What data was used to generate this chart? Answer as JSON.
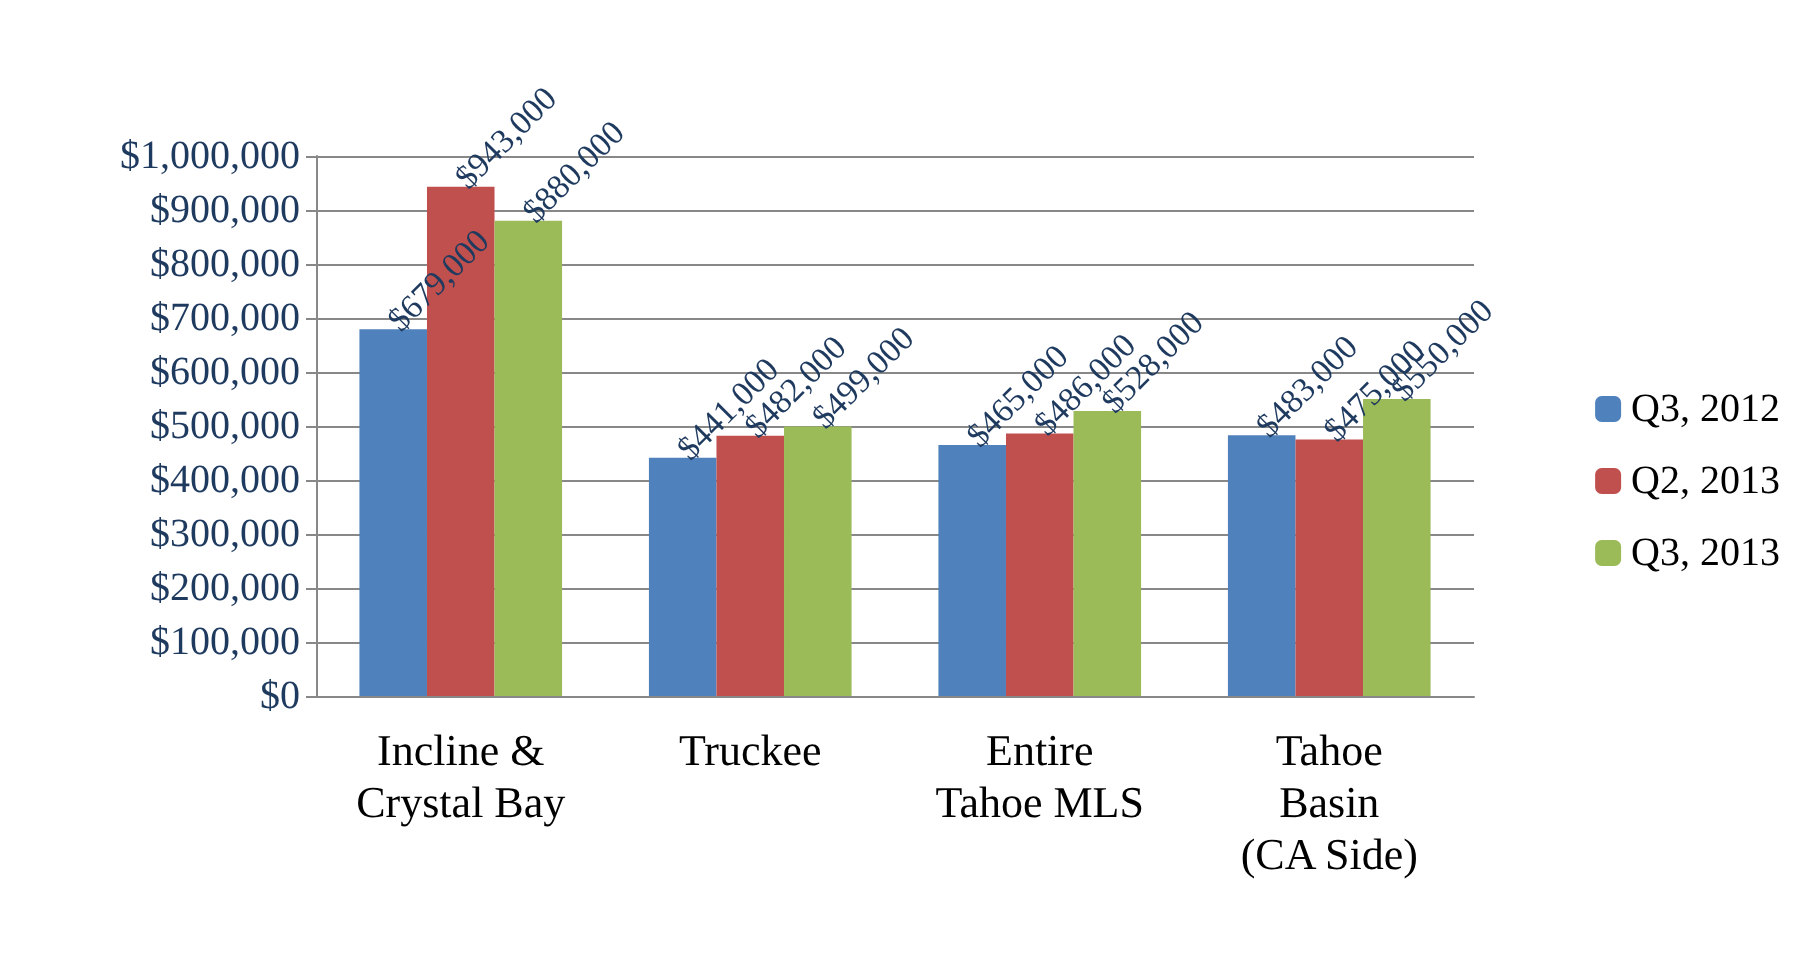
{
  "chart_data": {
    "type": "bar",
    "categories": [
      "Incline &\nCrystal Bay",
      "Truckee",
      "Entire\nTahoe MLS",
      "Tahoe\nBasin\n(CA Side)"
    ],
    "series": [
      {
        "name": "Q3, 2012",
        "color": "#4f81bd",
        "values": [
          679000,
          441000,
          465000,
          483000
        ],
        "value_labels": [
          "$679,000",
          "$441,000",
          "$465,000",
          "$483,000"
        ]
      },
      {
        "name": "Q2, 2013",
        "color": "#c0504d",
        "values": [
          943000,
          482000,
          486000,
          475000
        ],
        "value_labels": [
          "$943,000",
          "$482,000",
          "$486,000",
          "$475,000"
        ]
      },
      {
        "name": "Q3, 2013",
        "color": "#9bbb59",
        "values": [
          880000,
          499000,
          528000,
          550000
        ],
        "value_labels": [
          "$880,000",
          "$499,000",
          "$528,000",
          "$550,000"
        ]
      }
    ],
    "ylim": [
      0,
      1000000
    ],
    "yticks": [
      {
        "value": 0,
        "label": "$0"
      },
      {
        "value": 100000,
        "label": "$100,000"
      },
      {
        "value": 200000,
        "label": "$200,000"
      },
      {
        "value": 300000,
        "label": "$300,000"
      },
      {
        "value": 400000,
        "label": "$400,000"
      },
      {
        "value": 500000,
        "label": "$500,000"
      },
      {
        "value": 600000,
        "label": "$600,000"
      },
      {
        "value": 700000,
        "label": "$700,000"
      },
      {
        "value": 800000,
        "label": "$800,000"
      },
      {
        "value": 900000,
        "label": "$900,000"
      },
      {
        "value": 1000000,
        "label": "$1,000,000"
      }
    ],
    "grid": "y",
    "legend": "right"
  }
}
